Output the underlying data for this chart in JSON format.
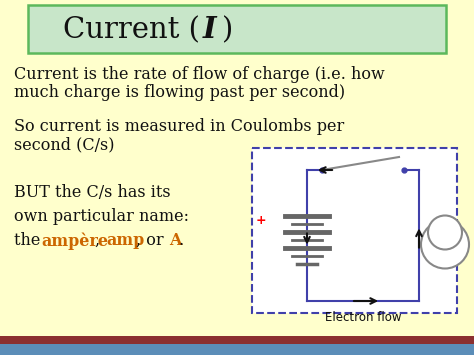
{
  "bg_color": "#FFFFCC",
  "title_bg": "#C8E6C9",
  "title_border": "#5CB85C",
  "body_text_color": "#111111",
  "ampere_color": "#CC6600",
  "line1": "Current is the rate of flow of charge (i.e. how",
  "line2": "much charge is flowing past per second)",
  "line3": "So current is measured in Coulombs per",
  "line4": "second (C/s)",
  "line5": "BUT the C/s has its",
  "line6": "own particular name:",
  "electron_flow_label": "Electron flow",
  "circuit_color": "#4040AA",
  "battery_color": "#666666",
  "bulb_color": "#888888",
  "arrow_color": "#111111",
  "bottom_bar_blue": "#5B8DB8",
  "bottom_bar_red": "#8B3030",
  "figsize": [
    4.74,
    3.55
  ],
  "dpi": 100
}
